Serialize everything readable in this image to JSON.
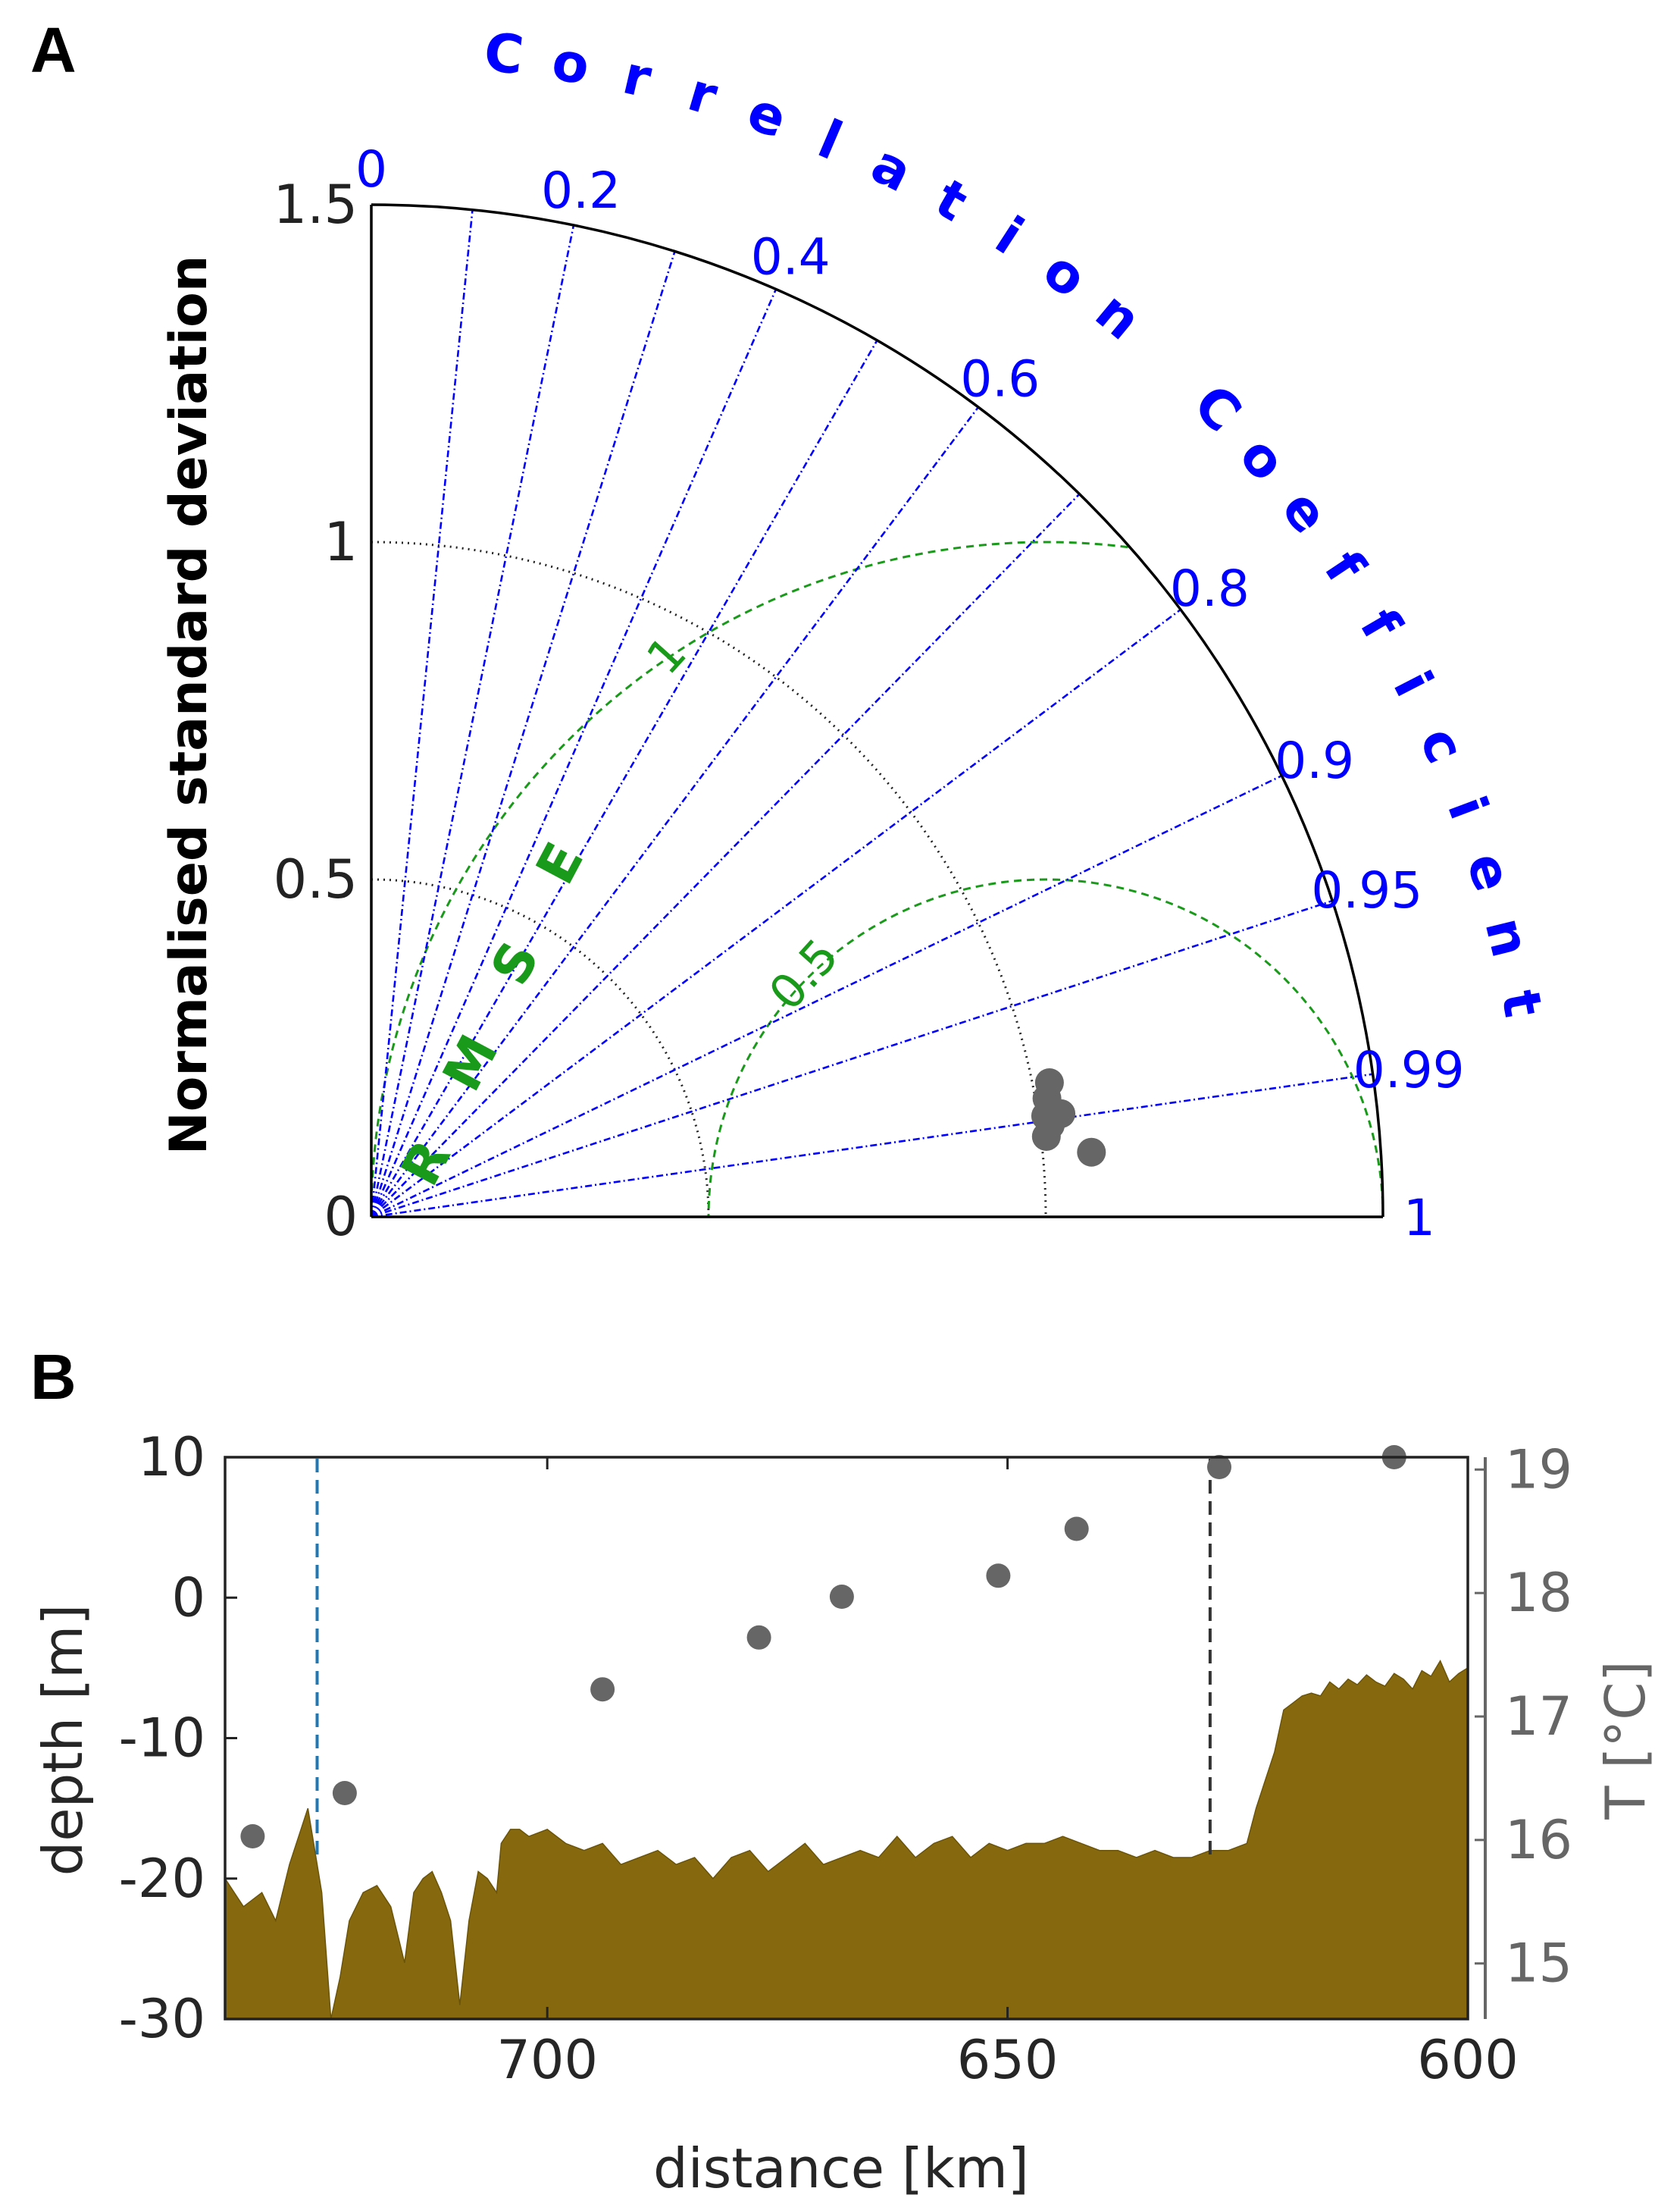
{
  "panels": {
    "a_label": "A",
    "b_label": "B"
  },
  "chart_data": [
    {
      "type": "scatter",
      "subtype": "taylor-diagram",
      "ylabel": "Normalised standard deviation",
      "arc_label": "Correlation Coefficient",
      "rmse_label": "RMSE",
      "std_range": [
        0,
        1.5
      ],
      "std_ticks": [
        {
          "value": 0,
          "label": "0"
        },
        {
          "value": 0.5,
          "label": "0.5"
        },
        {
          "value": 1,
          "label": "1"
        },
        {
          "value": 1.5,
          "label": "1.5"
        }
      ],
      "correlation_ticks": [
        {
          "value": 0,
          "label": "0"
        },
        {
          "value": 0.2,
          "label": "0.2"
        },
        {
          "value": 0.4,
          "label": "0.4"
        },
        {
          "value": 0.6,
          "label": "0.6"
        },
        {
          "value": 0.8,
          "label": "0.8"
        },
        {
          "value": 0.9,
          "label": "0.9"
        },
        {
          "value": 0.95,
          "label": "0.95"
        },
        {
          "value": 0.99,
          "label": "0.99"
        },
        {
          "value": 1,
          "label": "1"
        }
      ],
      "correlation_lines": [
        0.1,
        0.2,
        0.3,
        0.4,
        0.5,
        0.6,
        0.7,
        0.8,
        0.9,
        0.95,
        0.99
      ],
      "rmse_contours": [
        {
          "value": 0.5,
          "label": "0.5"
        },
        {
          "value": 1,
          "label": "1"
        }
      ],
      "std_arcs": [
        0.5,
        1.0
      ],
      "points": [
        {
          "std": 1.017,
          "corr": 0.985
        },
        {
          "std": 1.025,
          "corr": 0.981
        },
        {
          "std": 1.011,
          "corr": 0.989
        },
        {
          "std": 1.034,
          "corr": 0.989
        },
        {
          "std": 1.016,
          "corr": 0.991
        },
        {
          "std": 1.008,
          "corr": 0.993
        },
        {
          "std": 1.072,
          "corr": 0.996
        }
      ],
      "colors": {
        "correlation": "#0000ff",
        "rmse": "#1a9a1a",
        "std_arcs": "#222222",
        "points": "#666666"
      }
    },
    {
      "type": "area",
      "xlabel": "distance [km]",
      "ylabel": "depth [m]",
      "y2label": "T [°C]",
      "xlim": [
        735,
        600
      ],
      "ylim": [
        -30,
        10
      ],
      "y2lim": [
        14.55,
        19.1
      ],
      "x_ticks": [
        {
          "value": 700,
          "label": "700"
        },
        {
          "value": 650,
          "label": "650"
        },
        {
          "value": 600,
          "label": "600"
        }
      ],
      "y_ticks": [
        {
          "value": 10,
          "label": "10"
        },
        {
          "value": 0,
          "label": "0"
        },
        {
          "value": -10,
          "label": "-10"
        },
        {
          "value": -20,
          "label": "-20"
        },
        {
          "value": -30,
          "label": "-30"
        }
      ],
      "y2_ticks": [
        {
          "value": 19,
          "label": "19"
        },
        {
          "value": 18,
          "label": "18"
        },
        {
          "value": 17,
          "label": "17"
        },
        {
          "value": 16,
          "label": "16"
        },
        {
          "value": 15,
          "label": "15"
        }
      ],
      "bathymetry": {
        "x": [
          735,
          733,
          731,
          729.5,
          728,
          726,
          724.5,
          723.5,
          722.5,
          721.5,
          720,
          718.5,
          717,
          715.5,
          714.5,
          713.5,
          712.5,
          711.5,
          710.5,
          709.5,
          708.5,
          707.5,
          706.5,
          705.5,
          705,
          704,
          703,
          702,
          700,
          698,
          696,
          694,
          692,
          690,
          688,
          686,
          684,
          682,
          680,
          678,
          676,
          674,
          672,
          670,
          668,
          666,
          664,
          662,
          660,
          658,
          656,
          654,
          652,
          650,
          648,
          646,
          644,
          642,
          640,
          638,
          636,
          634,
          632,
          630,
          628,
          626,
          624,
          623,
          622,
          621,
          620,
          619,
          618,
          617,
          616,
          615,
          614,
          613,
          612,
          611,
          610,
          609,
          608,
          607,
          606,
          605,
          604,
          603,
          602,
          601,
          600
        ],
        "y": [
          -20,
          -22,
          -21,
          -23,
          -19,
          -15,
          -21,
          -30,
          -27,
          -23,
          -21,
          -20.5,
          -22,
          -26,
          -21,
          -20,
          -19.5,
          -21,
          -23,
          -29,
          -23,
          -19.5,
          -20,
          -21,
          -17.5,
          -16.5,
          -16.5,
          -17,
          -16.5,
          -17.5,
          -18,
          -17.5,
          -19,
          -18.5,
          -18,
          -19,
          -18.5,
          -20,
          -18.5,
          -18,
          -19.5,
          -18.5,
          -17.5,
          -19,
          -18.5,
          -18,
          -18.5,
          -17,
          -18.5,
          -17.5,
          -17,
          -18.5,
          -17.5,
          -18,
          -17.5,
          -17.5,
          -17,
          -17.5,
          -18,
          -18,
          -18.5,
          -18,
          -18.5,
          -18.5,
          -18,
          -18,
          -17.5,
          -15,
          -13,
          -11,
          -8,
          -7.5,
          -7,
          -6.8,
          -7,
          -6,
          -6.5,
          -5.8,
          -6.2,
          -5.5,
          -6,
          -6.3,
          -5.4,
          -5.8,
          -6.5,
          -5.2,
          -5.6,
          -4.5,
          -6,
          -5.4,
          -5
        ]
      },
      "temperature_points": [
        {
          "x": 732,
          "t": 16.03
        },
        {
          "x": 722,
          "t": 16.38
        },
        {
          "x": 694,
          "t": 17.22
        },
        {
          "x": 677,
          "t": 17.64
        },
        {
          "x": 668,
          "t": 17.97
        },
        {
          "x": 651,
          "t": 18.14
        },
        {
          "x": 642.5,
          "t": 18.52
        },
        {
          "x": 627,
          "t": 19.02
        },
        {
          "x": 608,
          "t": 19.1
        }
      ],
      "vlines": [
        {
          "x": 725,
          "color": "#1f77b4"
        },
        {
          "x": 628,
          "color": "#333333"
        }
      ],
      "colors": {
        "bathymetry": "#86690e",
        "points": "#666666",
        "y2_axis": "#666666"
      }
    }
  ]
}
